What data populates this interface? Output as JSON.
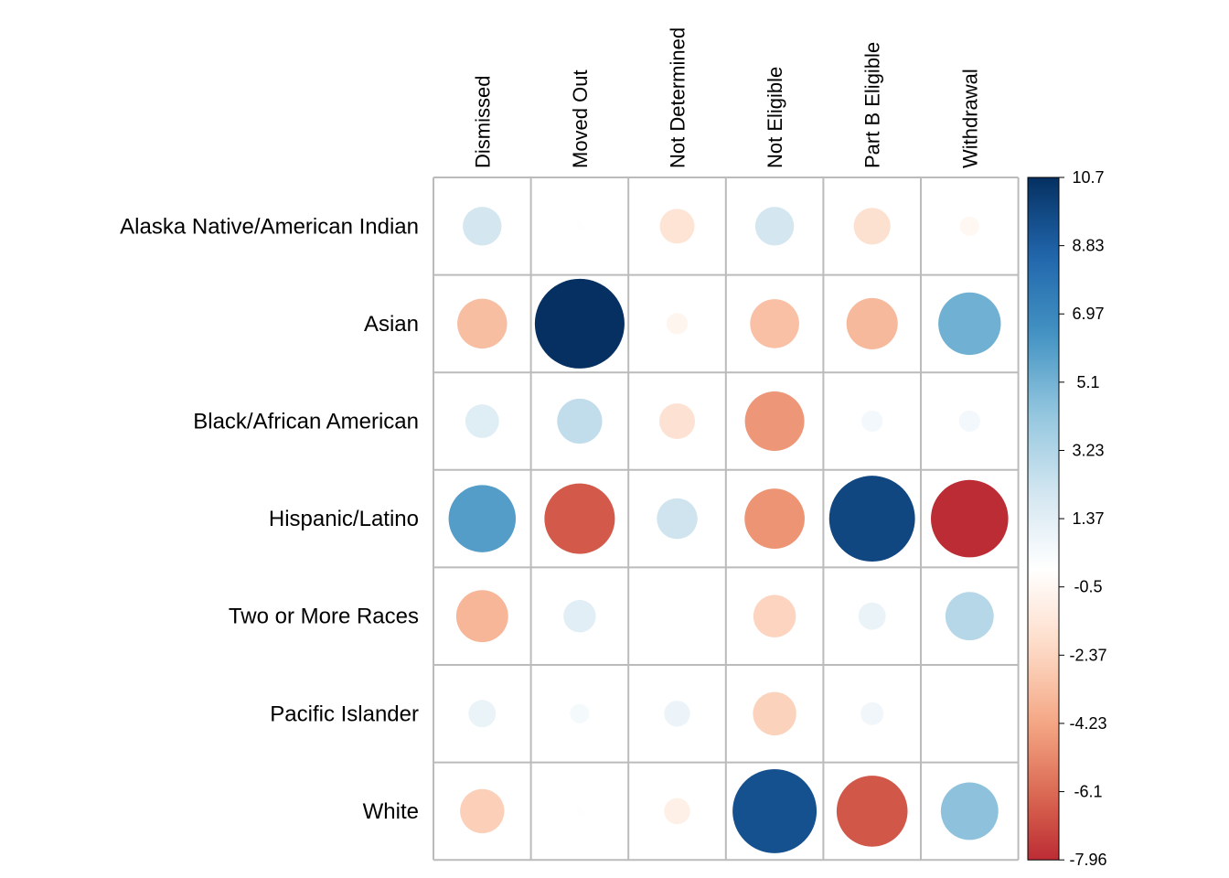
{
  "chart_data": {
    "type": "heatmap",
    "style": "corrplot-circle",
    "rows": [
      "Alaska Native/American Indian",
      "Asian",
      "Black/African American",
      "Hispanic/Latino",
      "Two or More Races",
      "Pacific Islander",
      "White"
    ],
    "columns": [
      "Dismissed",
      "Moved Out",
      "Not Determined",
      "Not Eligible",
      "Part B Eligible",
      "Withdrawal"
    ],
    "values": [
      [
        2.0,
        0.1,
        -1.6,
        2.0,
        -1.8,
        -0.5
      ],
      [
        -3.3,
        10.7,
        -0.6,
        -3.2,
        -3.5,
        5.2
      ],
      [
        1.5,
        2.7,
        -1.7,
        -4.7,
        0.6,
        0.6
      ],
      [
        6.0,
        -6.6,
        2.2,
        -4.8,
        9.8,
        -7.96
      ],
      [
        -3.6,
        1.4,
        0.0,
        -2.4,
        1.0,
        3.1
      ],
      [
        1.0,
        0.5,
        0.9,
        -2.5,
        0.7,
        0.0
      ],
      [
        -2.6,
        0.1,
        -0.9,
        9.4,
        -6.7,
        4.4
      ]
    ],
    "scale": {
      "min": -7.96,
      "max": 10.7,
      "ticks": [
        "10.7",
        "8.83",
        "6.97",
        "5.1",
        "3.23",
        "1.37",
        "-0.5",
        "-2.37",
        "-4.23",
        "-6.1",
        "-7.96"
      ],
      "palette": [
        "#67001F",
        "#B2182B",
        "#D6604D",
        "#F4A582",
        "#FDDBC7",
        "#FFFFFF",
        "#D1E5F0",
        "#92C5DE",
        "#4393C3",
        "#2166AC",
        "#053061"
      ]
    },
    "grid_color": "#bbbbbb",
    "grid": true,
    "legend_position": "right"
  }
}
